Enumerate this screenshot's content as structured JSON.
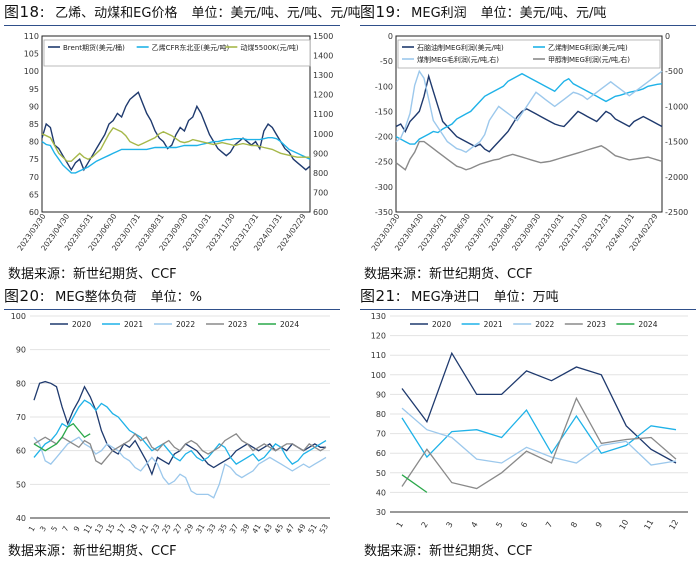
{
  "colors": {
    "navy": "#1f3a6e",
    "cyan": "#1fb2e8",
    "light": "#9cc8ec",
    "gray": "#8a8a8a",
    "green": "#2aa84a",
    "olive": "#a6b84a"
  },
  "fig18": {
    "fig": "图18:",
    "name": "乙烯、动煤和EG价格",
    "unit": "单位：美元/吨、元/吨、元/吨",
    "source": "数据来源：新世纪期货、CCF"
  },
  "fig19": {
    "fig": "图19:",
    "name": "MEG利润",
    "unit": "单位：美元/吨、元/吨",
    "source": "数据来源：新世纪期货、CCF"
  },
  "fig20": {
    "fig": "图20:",
    "name": "MEG整体负荷",
    "unit": "单位：%",
    "source": "数据来源：新世纪期货、CCF"
  },
  "fig21": {
    "fig": "图21:",
    "name": "MEG净进口",
    "unit": "单位：万吨",
    "source": "数据来源：新世纪期货、CCF"
  },
  "chart_data": [
    {
      "id": "fig18",
      "type": "line",
      "title": "乙烯、动煤和EG价格",
      "x_labels": [
        "2023/03/30",
        "2023/04/30",
        "2023/05/31",
        "2023/06/30",
        "2023/07/31",
        "2023/08/31",
        "2023/09/30",
        "2023/10/31",
        "2023/11/30",
        "2023/12/31",
        "2024/01/31",
        "2024/02/29"
      ],
      "ylim_left": [
        60,
        110
      ],
      "yticks_left": [
        60,
        65,
        70,
        75,
        80,
        85,
        90,
        95,
        100,
        105,
        110
      ],
      "ylim_right": [
        600,
        1500
      ],
      "yticks_right": [
        600,
        700,
        800,
        900,
        1000,
        1100,
        1200,
        1300,
        1400,
        1500
      ],
      "series": [
        {
          "name": "Brent期货(美元/桶)",
          "axis": "left",
          "color": "#1f3a6e",
          "values": [
            81,
            85,
            84,
            79,
            78,
            76,
            74,
            72,
            74,
            75,
            72,
            74,
            76,
            78,
            80,
            82,
            85,
            86,
            88,
            87,
            90,
            92,
            93,
            94,
            91,
            88,
            86,
            83,
            81,
            80,
            78,
            79,
            82,
            84,
            83,
            86,
            87,
            90,
            88,
            85,
            82,
            80,
            78,
            77,
            76,
            77,
            79,
            80,
            81,
            80,
            79,
            80,
            78,
            83,
            85,
            84,
            82,
            80,
            78,
            77,
            75,
            74,
            73,
            72,
            73
          ]
        },
        {
          "name": "乙烯CFR东北亚(美元/吨)",
          "axis": "right",
          "color": "#1fb2e8",
          "values": [
            960,
            945,
            940,
            900,
            870,
            840,
            820,
            800,
            800,
            810,
            820,
            830,
            845,
            860,
            870,
            880,
            890,
            900,
            910,
            920,
            920,
            920,
            920,
            920,
            920,
            920,
            925,
            930,
            930,
            930,
            930,
            930,
            930,
            935,
            940,
            940,
            940,
            940,
            945,
            950,
            955,
            960,
            960,
            965,
            970,
            970,
            975,
            975,
            975,
            970,
            970,
            970,
            970,
            975,
            980,
            980,
            975,
            960,
            940,
            920,
            910,
            900,
            890,
            880,
            870
          ]
        },
        {
          "name": "动煤5500K(元/吨)",
          "axis": "right",
          "color": "#a6b84a",
          "values": [
            1000,
            990,
            980,
            940,
            900,
            880,
            860,
            860,
            880,
            900,
            880,
            870,
            880,
            900,
            920,
            960,
            1000,
            1030,
            1020,
            1010,
            990,
            960,
            950,
            940,
            950,
            960,
            970,
            980,
            1000,
            1010,
            1000,
            990,
            975,
            960,
            955,
            960,
            970,
            965,
            960,
            955,
            950,
            945,
            950,
            955,
            950,
            945,
            940,
            945,
            950,
            945,
            940,
            940,
            935,
            930,
            925,
            920,
            910,
            900,
            895,
            890,
            885,
            880,
            880,
            880,
            880
          ]
        }
      ]
    },
    {
      "id": "fig19",
      "type": "line",
      "title": "MEG利润",
      "x_labels": [
        "2023/03/30",
        "2023/04/30",
        "2023/05/31",
        "2023/06/30",
        "2023/07/31",
        "2023/08/31",
        "2023/09/30",
        "2023/10/31",
        "2023/11/30",
        "2023/12/31",
        "2024/01/31",
        "2024/02/29"
      ],
      "ylim_left": [
        -350,
        0
      ],
      "yticks_left": [
        -350,
        -300,
        -250,
        -200,
        -150,
        -100,
        -50,
        0
      ],
      "ylim_right": [
        -2500,
        0
      ],
      "yticks_right": [
        -2500,
        -2000,
        -1500,
        -1000,
        -500,
        0
      ],
      "series": [
        {
          "name": "石脑油制MEG利润(美元/吨)",
          "axis": "left",
          "color": "#1f3a6e",
          "values": [
            -180,
            -175,
            -190,
            -170,
            -160,
            -150,
            -120,
            -80,
            -110,
            -140,
            -170,
            -180,
            -190,
            -200,
            -205,
            -210,
            -215,
            -220,
            -215,
            -225,
            -230,
            -220,
            -210,
            -200,
            -190,
            -175,
            -160,
            -150,
            -145,
            -150,
            -155,
            -160,
            -165,
            -170,
            -175,
            -178,
            -180,
            -170,
            -160,
            -150,
            -155,
            -160,
            -165,
            -170,
            -160,
            -150,
            -155,
            -165,
            -170,
            -175,
            -180,
            -170,
            -165,
            -160,
            -165,
            -170,
            -175,
            -180
          ]
        },
        {
          "name": "乙烯制MEG利润(美元/吨)",
          "axis": "left",
          "color": "#1fb2e8",
          "values": [
            -200,
            -205,
            -210,
            -215,
            -215,
            -205,
            -200,
            -195,
            -190,
            -192,
            -185,
            -180,
            -175,
            -165,
            -160,
            -155,
            -150,
            -140,
            -130,
            -120,
            -115,
            -110,
            -105,
            -100,
            -90,
            -85,
            -80,
            -75,
            -80,
            -85,
            -90,
            -95,
            -100,
            -105,
            -110,
            -100,
            -90,
            -85,
            -95,
            -100,
            -105,
            -110,
            -115,
            -120,
            -125,
            -130,
            -125,
            -120,
            -118,
            -115,
            -112,
            -110,
            -108,
            -105,
            -100,
            -98,
            -96,
            -95
          ]
        },
        {
          "name": "煤制MEG毛利润(元/吨,右)",
          "axis": "right",
          "color": "#9cc8ec",
          "values": [
            -1500,
            -1450,
            -1300,
            -1100,
            -700,
            -500,
            -600,
            -900,
            -1200,
            -1300,
            -1400,
            -1500,
            -1550,
            -1600,
            -1620,
            -1650,
            -1600,
            -1550,
            -1500,
            -1400,
            -1200,
            -1100,
            -1000,
            -1050,
            -1100,
            -1150,
            -1200,
            -1100,
            -1000,
            -900,
            -800,
            -850,
            -900,
            -950,
            -1000,
            -950,
            -900,
            -850,
            -800,
            -820,
            -850,
            -900,
            -850,
            -800,
            -750,
            -700,
            -650,
            -700,
            -750,
            -800,
            -850,
            -800,
            -750,
            -700,
            -650,
            -600,
            -550,
            -500
          ]
        },
        {
          "name": "甲醇制MEG利润(元/吨,右)",
          "axis": "right",
          "color": "#8a8a8a",
          "values": [
            -1800,
            -1850,
            -1900,
            -1750,
            -1650,
            -1500,
            -1500,
            -1550,
            -1600,
            -1650,
            -1700,
            -1750,
            -1800,
            -1850,
            -1870,
            -1900,
            -1880,
            -1850,
            -1820,
            -1800,
            -1780,
            -1760,
            -1750,
            -1720,
            -1700,
            -1680,
            -1700,
            -1720,
            -1740,
            -1760,
            -1780,
            -1800,
            -1790,
            -1780,
            -1760,
            -1740,
            -1720,
            -1700,
            -1680,
            -1660,
            -1640,
            -1620,
            -1600,
            -1580,
            -1560,
            -1600,
            -1650,
            -1700,
            -1720,
            -1740,
            -1760,
            -1750,
            -1740,
            -1730,
            -1720,
            -1740,
            -1760,
            -1780
          ]
        }
      ]
    },
    {
      "id": "fig20",
      "type": "line",
      "title": "MEG整体负荷",
      "x_labels": [
        "1",
        "3",
        "5",
        "7",
        "9",
        "11",
        "13",
        "15",
        "17",
        "19",
        "21",
        "23",
        "25",
        "27",
        "29",
        "31",
        "33",
        "35",
        "37",
        "39",
        "41",
        "43",
        "45",
        "47",
        "49",
        "51",
        "53"
      ],
      "ylim": [
        40,
        100
      ],
      "yticks": [
        40,
        50,
        60,
        70,
        80,
        90,
        100
      ],
      "series": [
        {
          "name": "2020",
          "color": "#1f3a6e",
          "values": [
            75,
            80,
            80.5,
            80,
            79,
            73,
            68,
            72,
            75,
            79,
            76,
            72,
            66,
            62,
            60,
            59,
            62,
            61,
            63,
            60,
            57,
            53,
            58,
            57,
            56,
            59,
            60,
            62,
            61,
            60,
            58,
            56,
            55,
            56,
            57,
            58,
            60,
            61,
            62,
            61,
            60,
            61,
            62,
            60,
            61,
            60,
            62,
            61,
            60,
            61,
            62,
            61,
            61
          ]
        },
        {
          "name": "2021",
          "color": "#1fb2e8",
          "values": [
            58,
            60,
            62,
            63,
            65,
            68,
            67,
            70,
            73,
            75,
            74,
            72,
            74,
            73,
            71,
            70,
            68,
            66,
            65,
            64,
            62,
            60,
            61,
            62,
            60,
            58,
            57,
            59,
            60,
            58,
            57,
            58,
            60,
            62,
            61,
            58,
            56,
            57,
            58,
            59,
            57,
            58,
            60,
            62,
            61,
            58,
            56,
            57,
            59,
            60,
            61,
            62,
            63
          ]
        },
        {
          "name": "2022",
          "color": "#9cc8ec",
          "values": [
            64,
            62,
            57,
            56,
            58,
            60,
            62,
            63,
            64,
            62,
            61,
            59,
            60,
            62,
            61,
            60,
            58,
            57,
            55,
            54,
            56,
            58,
            56,
            52,
            50,
            51,
            53,
            52,
            48,
            47,
            47,
            47,
            46,
            50,
            56,
            55,
            53,
            52,
            53,
            54,
            56,
            57,
            58,
            57,
            56,
            55,
            54,
            55,
            56,
            55,
            56,
            57,
            58
          ]
        },
        {
          "name": "2023",
          "color": "#8a8a8a",
          "values": [
            62,
            63,
            64,
            63,
            62,
            64,
            63,
            62,
            61,
            63,
            62,
            57,
            56,
            58,
            60,
            61,
            62,
            63,
            65,
            63,
            64,
            61,
            60,
            62,
            63,
            61,
            60,
            62,
            63,
            62,
            60,
            59,
            60,
            61,
            63,
            64,
            65,
            63,
            62,
            60,
            61,
            62,
            61,
            60,
            61,
            62,
            62,
            61,
            60,
            62,
            61,
            60,
            61
          ]
        },
        {
          "name": "2024",
          "color": "#2aa84a",
          "values": [
            62,
            61,
            60,
            61,
            62,
            64,
            67,
            68,
            66,
            64,
            65
          ]
        }
      ]
    },
    {
      "id": "fig21",
      "type": "line",
      "title": "MEG净进口",
      "x_labels": [
        "1",
        "2",
        "3",
        "4",
        "5",
        "6",
        "7",
        "8",
        "9",
        "10",
        "11",
        "12"
      ],
      "ylim": [
        30,
        130
      ],
      "yticks": [
        30,
        40,
        50,
        60,
        70,
        80,
        90,
        100,
        110,
        120,
        130
      ],
      "series": [
        {
          "name": "2020",
          "color": "#1f3a6e",
          "values": [
            93,
            76,
            111,
            90,
            90,
            102,
            97,
            104,
            100,
            74,
            62,
            55
          ]
        },
        {
          "name": "2021",
          "color": "#1fb2e8",
          "values": [
            78,
            58,
            71,
            72,
            68,
            82,
            60,
            79,
            60,
            64,
            74,
            72
          ]
        },
        {
          "name": "2022",
          "color": "#9cc8ec",
          "values": [
            83,
            72,
            68,
            57,
            55,
            63,
            58,
            55,
            64,
            66,
            54,
            56
          ]
        },
        {
          "name": "2023",
          "color": "#8a8a8a",
          "values": [
            43,
            62,
            45,
            42,
            50,
            61,
            55,
            88,
            65,
            67,
            68,
            57
          ]
        },
        {
          "name": "2024",
          "color": "#2aa84a",
          "values": [
            49,
            40
          ]
        }
      ]
    }
  ]
}
